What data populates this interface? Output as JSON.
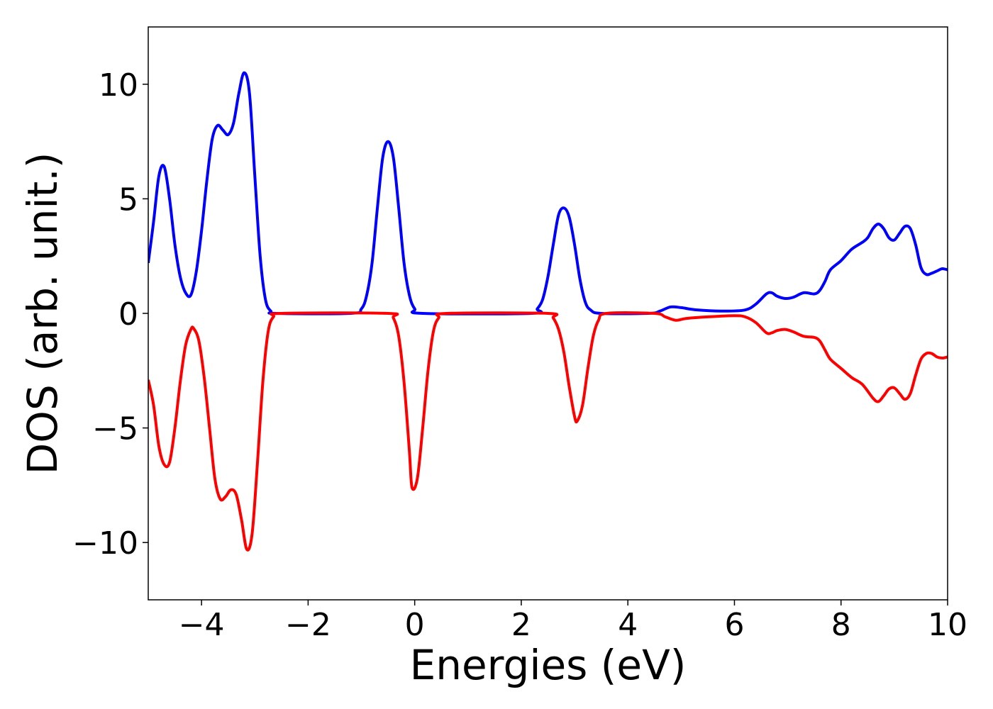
{
  "chart_data": {
    "type": "line",
    "xlabel": "Energies (eV)",
    "ylabel": "DOS (arb. unit.)",
    "xlim": [
      -5,
      10
    ],
    "ylim": [
      -12.5,
      12.5
    ],
    "xticks": [
      {
        "value": -4,
        "label": "−4"
      },
      {
        "value": -2,
        "label": "−2"
      },
      {
        "value": 0,
        "label": "0"
      },
      {
        "value": 2,
        "label": "2"
      },
      {
        "value": 4,
        "label": "4"
      },
      {
        "value": 6,
        "label": "6"
      },
      {
        "value": 8,
        "label": "8"
      },
      {
        "value": 10,
        "label": "10"
      }
    ],
    "yticks": [
      {
        "value": -10,
        "label": "−10"
      },
      {
        "value": -5,
        "label": "−5"
      },
      {
        "value": 0,
        "label": "0"
      },
      {
        "value": 5,
        "label": "5"
      },
      {
        "value": 10,
        "label": "10"
      }
    ],
    "grid": false,
    "legend": "none",
    "series": [
      {
        "color": "#0000ff",
        "points": [
          [
            -5.0,
            2.2
          ],
          [
            -4.9,
            4.0
          ],
          [
            -4.8,
            6.0
          ],
          [
            -4.7,
            6.4
          ],
          [
            -4.6,
            5.0
          ],
          [
            -4.5,
            3.0
          ],
          [
            -4.4,
            1.6
          ],
          [
            -4.3,
            0.9
          ],
          [
            -4.2,
            0.8
          ],
          [
            -4.1,
            1.8
          ],
          [
            -4.0,
            3.6
          ],
          [
            -3.9,
            5.8
          ],
          [
            -3.8,
            7.6
          ],
          [
            -3.7,
            8.2
          ],
          [
            -3.6,
            8.0
          ],
          [
            -3.5,
            7.8
          ],
          [
            -3.4,
            8.3
          ],
          [
            -3.3,
            9.6
          ],
          [
            -3.2,
            10.5
          ],
          [
            -3.1,
            9.6
          ],
          [
            -3.0,
            6.0
          ],
          [
            -2.9,
            2.5
          ],
          [
            -2.8,
            0.6
          ],
          [
            -2.7,
            0.1
          ],
          [
            -2.6,
            0.0
          ],
          [
            -1.2,
            0.0
          ],
          [
            -1.0,
            0.2
          ],
          [
            -0.9,
            0.8
          ],
          [
            -0.8,
            2.2
          ],
          [
            -0.7,
            4.6
          ],
          [
            -0.6,
            6.8
          ],
          [
            -0.5,
            7.5
          ],
          [
            -0.4,
            6.8
          ],
          [
            -0.3,
            4.6
          ],
          [
            -0.2,
            2.2
          ],
          [
            -0.1,
            0.8
          ],
          [
            0.0,
            0.2
          ],
          [
            0.15,
            0.0
          ],
          [
            2.2,
            0.0
          ],
          [
            2.3,
            0.2
          ],
          [
            2.4,
            0.6
          ],
          [
            2.5,
            1.6
          ],
          [
            2.6,
            3.0
          ],
          [
            2.7,
            4.3
          ],
          [
            2.8,
            4.6
          ],
          [
            2.9,
            4.2
          ],
          [
            3.0,
            3.0
          ],
          [
            3.1,
            1.5
          ],
          [
            3.2,
            0.5
          ],
          [
            3.3,
            0.15
          ],
          [
            3.5,
            0.0
          ],
          [
            4.4,
            0.0
          ],
          [
            4.6,
            0.1
          ],
          [
            4.8,
            0.28
          ],
          [
            5.0,
            0.25
          ],
          [
            5.3,
            0.15
          ],
          [
            5.8,
            0.1
          ],
          [
            6.2,
            0.15
          ],
          [
            6.4,
            0.4
          ],
          [
            6.6,
            0.85
          ],
          [
            6.7,
            0.9
          ],
          [
            6.8,
            0.75
          ],
          [
            6.95,
            0.65
          ],
          [
            7.1,
            0.7
          ],
          [
            7.3,
            0.9
          ],
          [
            7.5,
            0.85
          ],
          [
            7.6,
            1.0
          ],
          [
            7.7,
            1.4
          ],
          [
            7.8,
            1.9
          ],
          [
            8.0,
            2.3
          ],
          [
            8.2,
            2.8
          ],
          [
            8.4,
            3.1
          ],
          [
            8.5,
            3.3
          ],
          [
            8.6,
            3.7
          ],
          [
            8.7,
            3.9
          ],
          [
            8.8,
            3.7
          ],
          [
            8.9,
            3.3
          ],
          [
            9.0,
            3.2
          ],
          [
            9.1,
            3.5
          ],
          [
            9.2,
            3.8
          ],
          [
            9.3,
            3.7
          ],
          [
            9.4,
            3.0
          ],
          [
            9.5,
            2.0
          ],
          [
            9.6,
            1.7
          ],
          [
            9.7,
            1.75
          ],
          [
            9.8,
            1.85
          ],
          [
            9.9,
            1.95
          ],
          [
            10.0,
            1.9
          ]
        ]
      },
      {
        "color": "#ff0000",
        "points": [
          [
            -5.0,
            -2.9
          ],
          [
            -4.9,
            -4.0
          ],
          [
            -4.8,
            -5.8
          ],
          [
            -4.7,
            -6.6
          ],
          [
            -4.6,
            -6.5
          ],
          [
            -4.5,
            -5.0
          ],
          [
            -4.4,
            -3.0
          ],
          [
            -4.3,
            -1.4
          ],
          [
            -4.2,
            -0.7
          ],
          [
            -4.15,
            -0.65
          ],
          [
            -4.05,
            -1.2
          ],
          [
            -3.95,
            -2.8
          ],
          [
            -3.85,
            -5.0
          ],
          [
            -3.75,
            -7.2
          ],
          [
            -3.65,
            -8.1
          ],
          [
            -3.55,
            -8.0
          ],
          [
            -3.45,
            -7.7
          ],
          [
            -3.35,
            -7.9
          ],
          [
            -3.25,
            -9.0
          ],
          [
            -3.15,
            -10.3
          ],
          [
            -3.05,
            -9.6
          ],
          [
            -2.95,
            -6.5
          ],
          [
            -2.85,
            -3.0
          ],
          [
            -2.75,
            -0.8
          ],
          [
            -2.65,
            -0.15
          ],
          [
            -2.5,
            0.0
          ],
          [
            -0.5,
            0.0
          ],
          [
            -0.4,
            -0.2
          ],
          [
            -0.3,
            -1.0
          ],
          [
            -0.2,
            -3.0
          ],
          [
            -0.1,
            -6.0
          ],
          [
            -0.05,
            -7.6
          ],
          [
            0.05,
            -7.2
          ],
          [
            0.15,
            -5.0
          ],
          [
            0.25,
            -2.5
          ],
          [
            0.35,
            -0.8
          ],
          [
            0.45,
            -0.2
          ],
          [
            0.6,
            0.0
          ],
          [
            2.5,
            0.0
          ],
          [
            2.6,
            -0.2
          ],
          [
            2.7,
            -0.7
          ],
          [
            2.8,
            -1.7
          ],
          [
            2.9,
            -3.2
          ],
          [
            3.0,
            -4.5
          ],
          [
            3.05,
            -4.7
          ],
          [
            3.15,
            -4.0
          ],
          [
            3.25,
            -2.4
          ],
          [
            3.35,
            -1.0
          ],
          [
            3.45,
            -0.3
          ],
          [
            3.6,
            0.0
          ],
          [
            4.5,
            0.0
          ],
          [
            4.7,
            -0.15
          ],
          [
            4.9,
            -0.3
          ],
          [
            5.1,
            -0.22
          ],
          [
            5.5,
            -0.15
          ],
          [
            6.0,
            -0.1
          ],
          [
            6.2,
            -0.15
          ],
          [
            6.4,
            -0.4
          ],
          [
            6.6,
            -0.85
          ],
          [
            6.7,
            -0.85
          ],
          [
            6.8,
            -0.75
          ],
          [
            6.95,
            -0.7
          ],
          [
            7.1,
            -0.8
          ],
          [
            7.3,
            -1.0
          ],
          [
            7.5,
            -1.05
          ],
          [
            7.6,
            -1.2
          ],
          [
            7.7,
            -1.6
          ],
          [
            7.8,
            -2.0
          ],
          [
            8.0,
            -2.4
          ],
          [
            8.2,
            -2.8
          ],
          [
            8.4,
            -3.1
          ],
          [
            8.6,
            -3.7
          ],
          [
            8.7,
            -3.85
          ],
          [
            8.8,
            -3.6
          ],
          [
            8.9,
            -3.3
          ],
          [
            9.0,
            -3.25
          ],
          [
            9.1,
            -3.5
          ],
          [
            9.2,
            -3.75
          ],
          [
            9.3,
            -3.5
          ],
          [
            9.4,
            -2.7
          ],
          [
            9.5,
            -2.0
          ],
          [
            9.6,
            -1.75
          ],
          [
            9.7,
            -1.75
          ],
          [
            9.8,
            -1.9
          ],
          [
            9.9,
            -1.95
          ],
          [
            10.0,
            -1.9
          ]
        ]
      }
    ]
  }
}
